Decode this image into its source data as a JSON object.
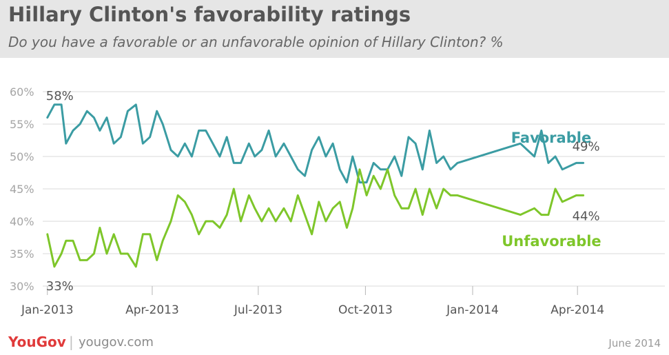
{
  "header": {
    "title": "Hillary Clinton's favorability ratings",
    "subtitle": "Do you have a favorable or an unfavorable opinion of Hillary Clinton? %"
  },
  "footer": {
    "logo": "YouGov",
    "url": "yougov.com",
    "date": "June 2014"
  },
  "colors": {
    "favorable": "#3b9ca3",
    "unfavorable": "#7ec62a",
    "grid": "#d9d9d9",
    "tick": "#b5b5b5",
    "axis_text": "#555555"
  },
  "chart_data": {
    "type": "line",
    "x_unit": "days since 2013-01-01",
    "xlim": [
      -4,
      530
    ],
    "ylim": [
      30,
      60
    ],
    "yticks": [
      30,
      35,
      40,
      45,
      50,
      55,
      60
    ],
    "ytick_labels": [
      "30%",
      "35%",
      "40%",
      "45%",
      "50%",
      "55%",
      "60%"
    ],
    "xticks": [
      {
        "value": 0,
        "label": "Jan-2013"
      },
      {
        "value": 90,
        "label": "Apr-2013"
      },
      {
        "value": 181,
        "label": "Jul-2013"
      },
      {
        "value": 273,
        "label": "Oct-2013"
      },
      {
        "value": 365,
        "label": "Jan-2014"
      },
      {
        "value": 455,
        "label": "Apr-2014"
      }
    ],
    "series": [
      {
        "name": "Favorable",
        "key": "favorable",
        "label_pos": {
          "x": 398,
          "y": 53
        },
        "points": [
          [
            0,
            56
          ],
          [
            6,
            58
          ],
          [
            12,
            58
          ],
          [
            16,
            52
          ],
          [
            22,
            54
          ],
          [
            28,
            55
          ],
          [
            34,
            57
          ],
          [
            40,
            56
          ],
          [
            45,
            54
          ],
          [
            51,
            56
          ],
          [
            57,
            52
          ],
          [
            63,
            53
          ],
          [
            69,
            57
          ],
          [
            76,
            58
          ],
          [
            82,
            52
          ],
          [
            88,
            53
          ],
          [
            94,
            57
          ],
          [
            99,
            55
          ],
          [
            106,
            51
          ],
          [
            112,
            50
          ],
          [
            118,
            52
          ],
          [
            124,
            50
          ],
          [
            130,
            54
          ],
          [
            136,
            54
          ],
          [
            142,
            52
          ],
          [
            148,
            50
          ],
          [
            154,
            53
          ],
          [
            160,
            49
          ],
          [
            166,
            49
          ],
          [
            173,
            52
          ],
          [
            178,
            50
          ],
          [
            184,
            51
          ],
          [
            190,
            54
          ],
          [
            196,
            50
          ],
          [
            203,
            52
          ],
          [
            209,
            50
          ],
          [
            215,
            48
          ],
          [
            221,
            47
          ],
          [
            227,
            51
          ],
          [
            233,
            53
          ],
          [
            239,
            50
          ],
          [
            245,
            52
          ],
          [
            251,
            48
          ],
          [
            257,
            46
          ],
          [
            262,
            50
          ],
          [
            268,
            46
          ],
          [
            274,
            46
          ],
          [
            280,
            49
          ],
          [
            286,
            48
          ],
          [
            292,
            48
          ],
          [
            298,
            50
          ],
          [
            304,
            47
          ],
          [
            310,
            53
          ],
          [
            316,
            52
          ],
          [
            322,
            48
          ],
          [
            328,
            54
          ],
          [
            334,
            49
          ],
          [
            340,
            50
          ],
          [
            346,
            48
          ],
          [
            352,
            49
          ],
          [
            406,
            52
          ],
          [
            418,
            50
          ],
          [
            424,
            54
          ],
          [
            430,
            49
          ],
          [
            436,
            50
          ],
          [
            442,
            48
          ],
          [
            454,
            49
          ],
          [
            460,
            49
          ]
        ],
        "end_label": "49%",
        "start_label": "58%"
      },
      {
        "name": "Unfavorable",
        "key": "unfavorable",
        "label_pos": {
          "x": 390,
          "y": 37
        },
        "points": [
          [
            0,
            38
          ],
          [
            6,
            33
          ],
          [
            12,
            35
          ],
          [
            16,
            37
          ],
          [
            22,
            37
          ],
          [
            28,
            34
          ],
          [
            34,
            34
          ],
          [
            40,
            35
          ],
          [
            45,
            39
          ],
          [
            51,
            35
          ],
          [
            57,
            38
          ],
          [
            63,
            35
          ],
          [
            69,
            35
          ],
          [
            76,
            33
          ],
          [
            82,
            38
          ],
          [
            88,
            38
          ],
          [
            94,
            34
          ],
          [
            99,
            37
          ],
          [
            106,
            40
          ],
          [
            112,
            44
          ],
          [
            118,
            43
          ],
          [
            124,
            41
          ],
          [
            130,
            38
          ],
          [
            136,
            40
          ],
          [
            142,
            40
          ],
          [
            148,
            39
          ],
          [
            154,
            41
          ],
          [
            160,
            45
          ],
          [
            166,
            40
          ],
          [
            173,
            44
          ],
          [
            178,
            42
          ],
          [
            184,
            40
          ],
          [
            190,
            42
          ],
          [
            196,
            40
          ],
          [
            203,
            42
          ],
          [
            209,
            40
          ],
          [
            215,
            44
          ],
          [
            221,
            41
          ],
          [
            227,
            38
          ],
          [
            233,
            43
          ],
          [
            239,
            40
          ],
          [
            245,
            42
          ],
          [
            251,
            43
          ],
          [
            257,
            39
          ],
          [
            262,
            42
          ],
          [
            268,
            48
          ],
          [
            274,
            44
          ],
          [
            280,
            47
          ],
          [
            286,
            45
          ],
          [
            292,
            48
          ],
          [
            298,
            44
          ],
          [
            304,
            42
          ],
          [
            310,
            42
          ],
          [
            316,
            45
          ],
          [
            322,
            41
          ],
          [
            328,
            45
          ],
          [
            334,
            42
          ],
          [
            340,
            45
          ],
          [
            346,
            44
          ],
          [
            352,
            44
          ],
          [
            406,
            41
          ],
          [
            418,
            42
          ],
          [
            424,
            41
          ],
          [
            430,
            41
          ],
          [
            436,
            45
          ],
          [
            442,
            43
          ],
          [
            454,
            44
          ],
          [
            460,
            44
          ]
        ],
        "end_label": "44%",
        "start_label": "33%"
      }
    ]
  }
}
